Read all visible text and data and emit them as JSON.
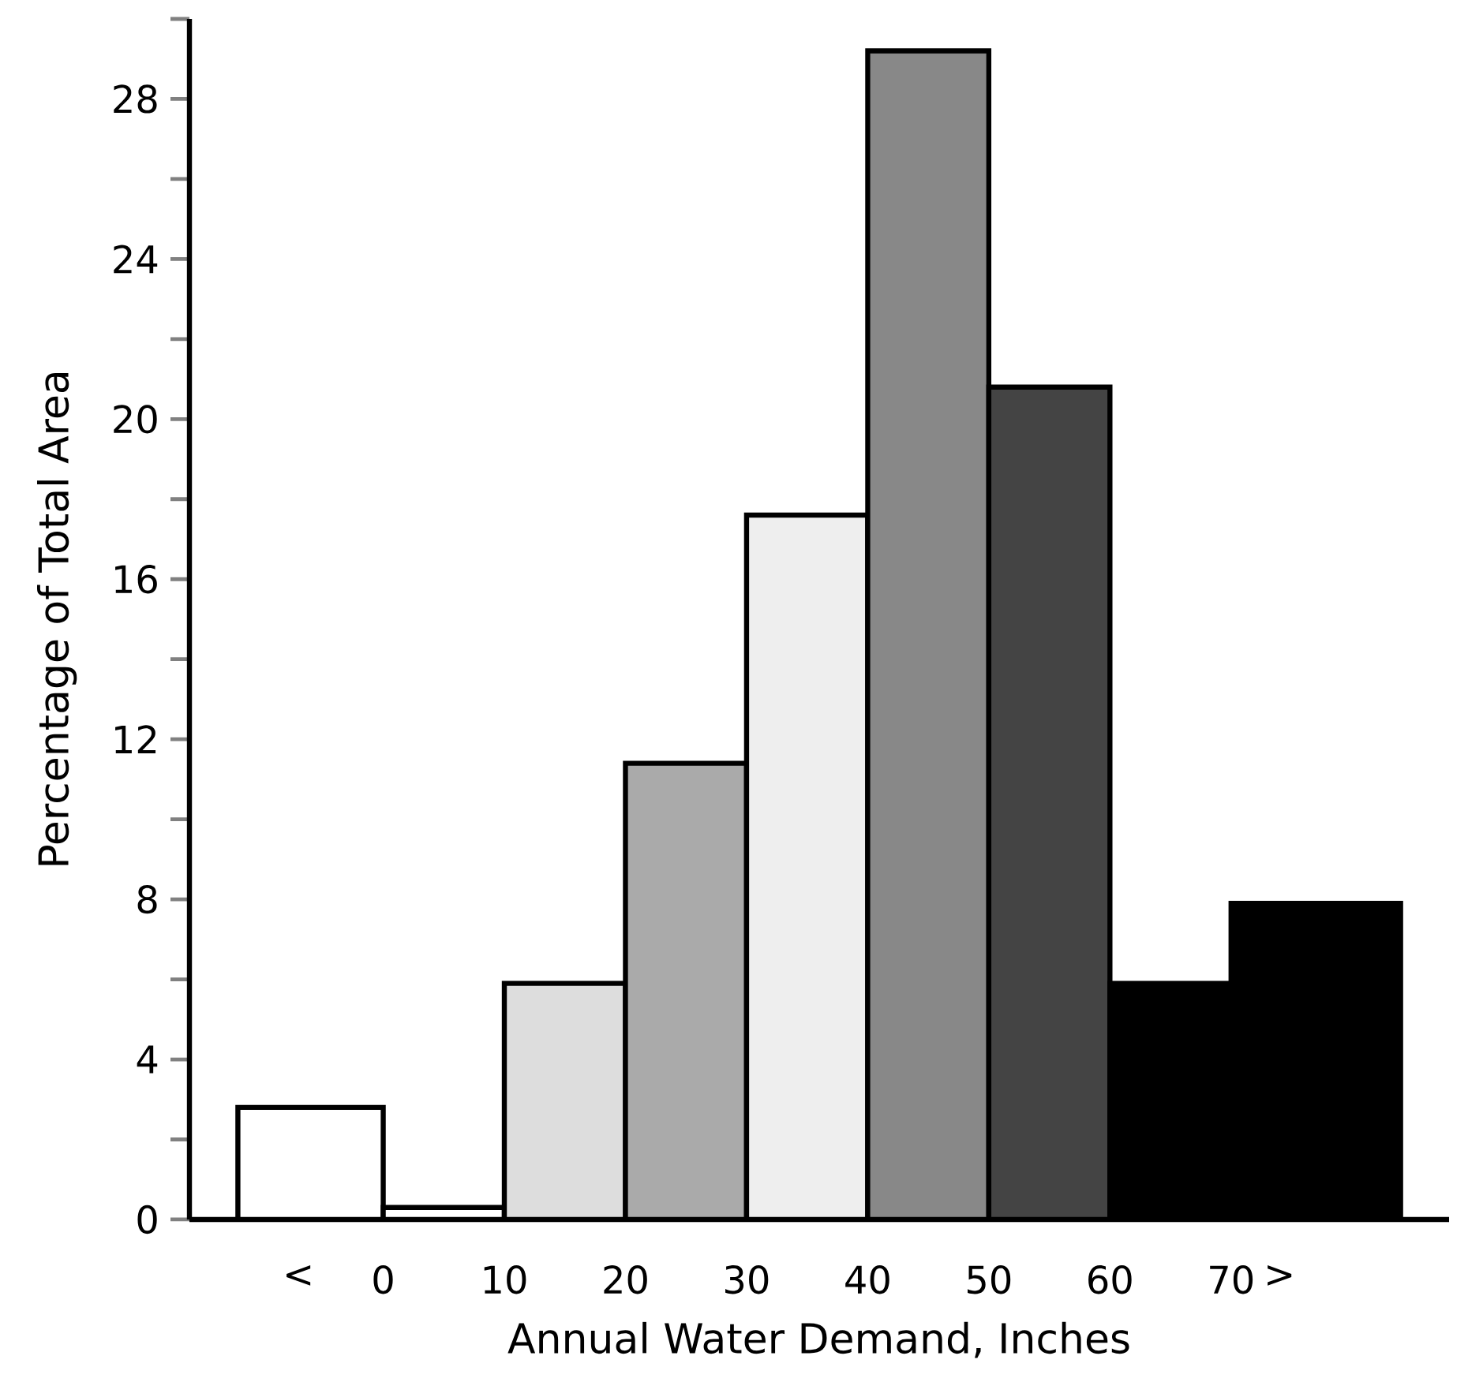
{
  "chart_data": {
    "type": "histogram",
    "xlabel": "Annual Water Demand,  Inches",
    "ylabel": "Percentage of Total Area",
    "bins": [
      -12,
      0,
      10,
      20,
      30,
      40,
      50,
      60,
      70,
      84
    ],
    "values": [
      2.8,
      0.3,
      5.9,
      11.4,
      17.6,
      29.2,
      20.8,
      5.9,
      7.9
    ],
    "colors": [
      "#ffffff",
      "#ffffff",
      "#dddddd",
      "#aaaaaa",
      "#eeeeee",
      "#888888",
      "#444444",
      "#000000",
      "#000000"
    ],
    "xlim": [
      -16,
      88
    ],
    "xticks": [
      {
        "value": -7,
        "label": "<"
      },
      0,
      10,
      20,
      30,
      40,
      50,
      60,
      70,
      {
        "value": 74,
        "label": ">"
      }
    ],
    "ylim": [
      0,
      30
    ],
    "yticks": [
      0,
      {
        "value": 2,
        "label": null
      },
      4,
      {
        "value": 6,
        "label": null
      },
      8,
      {
        "value": 10,
        "label": null
      },
      12,
      {
        "value": 14,
        "label": null
      },
      16,
      {
        "value": 18,
        "label": null
      },
      20,
      {
        "value": 22,
        "label": null
      },
      24,
      {
        "value": 26,
        "label": null
      },
      28,
      {
        "value": 30,
        "label": null
      }
    ]
  }
}
